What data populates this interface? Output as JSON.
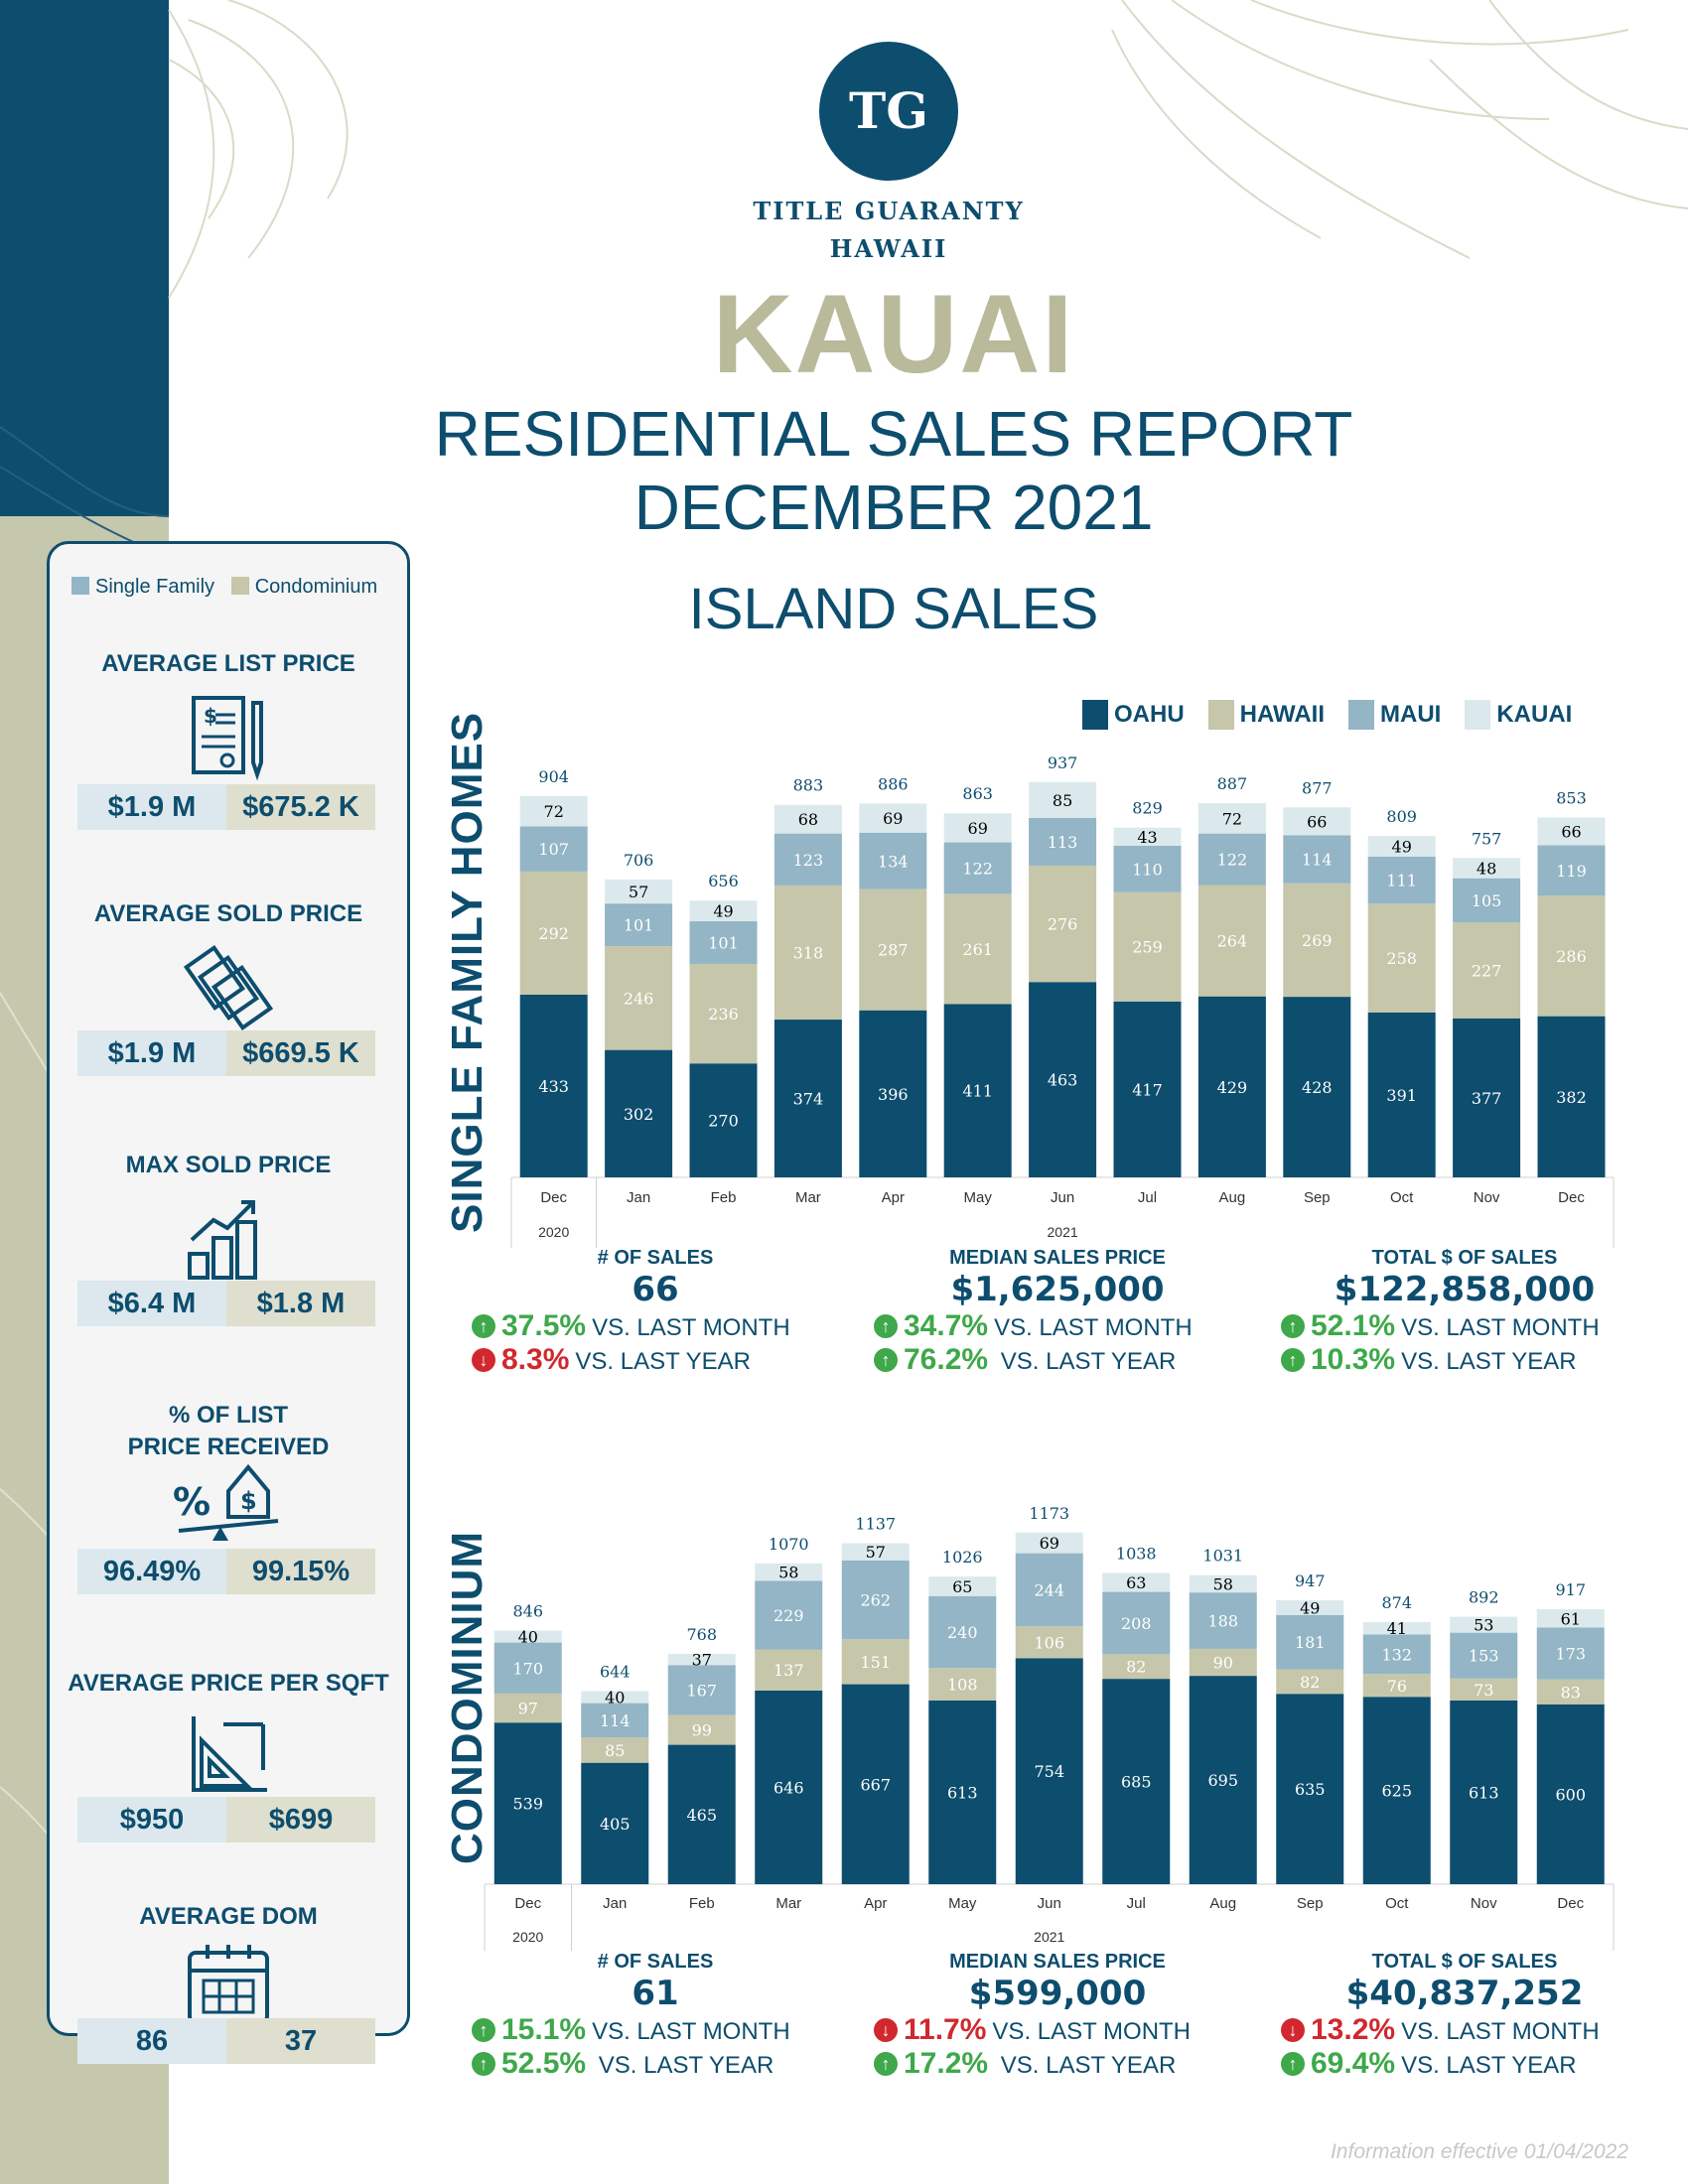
{
  "brand": {
    "logo_initials": "TG",
    "line1": "TITLE GUARANTY",
    "line2": "HAWAII"
  },
  "header": {
    "island": "KAUAI",
    "title": "RESIDENTIAL SALES REPORT",
    "date": "DECEMBER 2021",
    "section": "ISLAND SALES"
  },
  "colors": {
    "oahu": "#0d4d6e",
    "hawaii": "#c5c6aa",
    "maui": "#93b5c5",
    "kauai": "#dbe9ed"
  },
  "sidebar": {
    "legend": {
      "single_family": "Single Family",
      "condominium": "Condominium"
    },
    "metrics": [
      {
        "title": "AVERAGE LIST PRICE",
        "icon": "document-pen-icon",
        "sf": "$1.9 M",
        "condo": "$675.2 K"
      },
      {
        "title": "AVERAGE SOLD PRICE",
        "icon": "money-stack-icon",
        "sf": "$1.9 M",
        "condo": "$669.5 K"
      },
      {
        "title": "MAX SOLD PRICE",
        "icon": "bar-growth-icon",
        "sf": "$6.4 M",
        "condo": "$1.8 M"
      },
      {
        "title": "% OF LIST\nPRICE RECEIVED",
        "title_line1": "% OF LIST",
        "title_line2": "PRICE RECEIVED",
        "icon": "scale-house-icon",
        "sf": "96.49%",
        "condo": "99.15%"
      },
      {
        "title": "AVERAGE PRICE PER SQFT",
        "icon": "blueprint-icon",
        "sf": "$950",
        "condo": "$699"
      },
      {
        "title": "AVERAGE DOM",
        "icon": "calendar-icon",
        "sf": "86",
        "condo": "37"
      }
    ]
  },
  "legend_main": [
    "OAHU",
    "HAWAII",
    "MAUI",
    "KAUAI"
  ],
  "chart_data": [
    {
      "type": "bar",
      "stacked": true,
      "title": "SINGLE FAMILY HOMES",
      "categories": [
        "Dec",
        "Jan",
        "Feb",
        "Mar",
        "Apr",
        "May",
        "Jun",
        "Jul",
        "Aug",
        "Sep",
        "Oct",
        "Nov",
        "Dec"
      ],
      "year_labels": {
        "0": "2020",
        "6": "2021"
      },
      "series": [
        {
          "name": "OAHU",
          "values": [
            433,
            302,
            270,
            374,
            396,
            411,
            463,
            417,
            429,
            428,
            391,
            377,
            382
          ]
        },
        {
          "name": "HAWAII",
          "values": [
            292,
            246,
            236,
            318,
            287,
            261,
            276,
            259,
            264,
            269,
            258,
            227,
            286
          ]
        },
        {
          "name": "MAUI",
          "values": [
            107,
            101,
            101,
            123,
            134,
            122,
            113,
            110,
            122,
            114,
            111,
            105,
            119
          ]
        },
        {
          "name": "KAUAI",
          "values": [
            72,
            57,
            49,
            68,
            69,
            69,
            85,
            43,
            72,
            66,
            49,
            48,
            66
          ]
        }
      ],
      "totals": [
        904,
        706,
        656,
        883,
        886,
        863,
        937,
        829,
        887,
        877,
        809,
        757,
        853
      ]
    },
    {
      "type": "bar",
      "stacked": true,
      "title": "CONDOMINIUM",
      "categories": [
        "Dec",
        "Jan",
        "Feb",
        "Mar",
        "Apr",
        "May",
        "Jun",
        "Jul",
        "Aug",
        "Sep",
        "Oct",
        "Nov",
        "Dec"
      ],
      "year_labels": {
        "0": "2020",
        "6": "2021"
      },
      "series": [
        {
          "name": "OAHU",
          "values": [
            539,
            405,
            465,
            646,
            667,
            613,
            754,
            685,
            695,
            635,
            625,
            613,
            600
          ]
        },
        {
          "name": "HAWAII",
          "values": [
            97,
            85,
            99,
            137,
            151,
            108,
            106,
            82,
            90,
            82,
            76,
            73,
            83
          ]
        },
        {
          "name": "MAUI",
          "values": [
            170,
            114,
            167,
            229,
            262,
            240,
            244,
            208,
            188,
            181,
            132,
            153,
            173
          ]
        },
        {
          "name": "KAUAI",
          "values": [
            40,
            40,
            37,
            58,
            57,
            65,
            69,
            63,
            58,
            49,
            41,
            53,
            61
          ]
        }
      ],
      "totals": [
        846,
        644,
        768,
        1070,
        1137,
        1026,
        1173,
        1038,
        1031,
        947,
        874,
        892,
        917
      ]
    }
  ],
  "sf_stats": [
    {
      "head": "# OF SALES",
      "value": "66",
      "lines": [
        {
          "dir": "up",
          "pct": "37.5%",
          "text": "VS. LAST MONTH"
        },
        {
          "dir": "down",
          "pct": "8.3%",
          "text": "VS. LAST YEAR"
        }
      ]
    },
    {
      "head": "MEDIAN SALES PRICE",
      "value": "$1,625,000",
      "lines": [
        {
          "dir": "up",
          "pct": "34.7%",
          "text": "VS. LAST MONTH"
        },
        {
          "dir": "up",
          "pct": "76.2%",
          "text": " VS. LAST YEAR"
        }
      ]
    },
    {
      "head": "TOTAL $ OF SALES",
      "value": "$122,858,000",
      "lines": [
        {
          "dir": "up",
          "pct": "52.1%",
          "text": "VS. LAST MONTH"
        },
        {
          "dir": "up",
          "pct": "10.3%",
          "text": "VS. LAST YEAR"
        }
      ]
    }
  ],
  "condo_stats": [
    {
      "head": "# OF SALES",
      "value": "61",
      "lines": [
        {
          "dir": "up",
          "pct": "15.1%",
          "text": "VS. LAST MONTH"
        },
        {
          "dir": "up",
          "pct": "52.5%",
          "text": " VS. LAST YEAR"
        }
      ]
    },
    {
      "head": "MEDIAN SALES PRICE",
      "value": "$599,000",
      "lines": [
        {
          "dir": "down",
          "pct": "11.7%",
          "text": "VS. LAST MONTH"
        },
        {
          "dir": "up",
          "pct": "17.2%",
          "text": " VS. LAST YEAR"
        }
      ]
    },
    {
      "head": "TOTAL $ OF SALES",
      "value": "$40,837,252",
      "lines": [
        {
          "dir": "down",
          "pct": "13.2%",
          "text": "VS. LAST MONTH"
        },
        {
          "dir": "up",
          "pct": "69.4%",
          "text": "VS. LAST YEAR"
        }
      ]
    }
  ],
  "footer": "Information effective 01/04/2022"
}
